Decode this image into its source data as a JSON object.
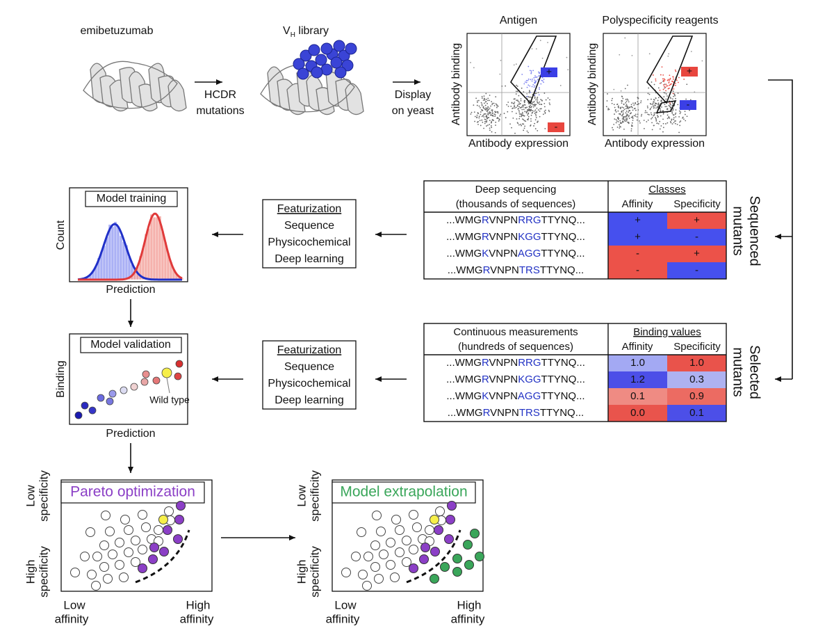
{
  "top": {
    "parent_label": "emibetuzumab",
    "library_label": {
      "main": "V",
      "sub": "H",
      "rest": " library"
    },
    "mutation_step": [
      "HCDR",
      "mutations"
    ],
    "display_step": [
      "Display",
      "on yeast"
    ],
    "plots": [
      {
        "title": "Antigen",
        "y_label": "Antibody binding",
        "x_label": "Antibody expression",
        "gates": [
          {
            "label": "+",
            "color": "#3b3fe6"
          },
          {
            "label": "-",
            "color": "#e8463e"
          }
        ]
      },
      {
        "title": "Polyspecificity reagents",
        "y_label": "Antibody binding",
        "x_label": "Antibody expression",
        "gates": [
          {
            "label": "+",
            "color": "#e8463e"
          },
          {
            "label": "-",
            "color": "#3b3fe6"
          }
        ]
      }
    ]
  },
  "sequenced_table": {
    "header": [
      "Deep sequencing",
      "(thousands of sequences)"
    ],
    "group_header": "Classes",
    "columns": [
      "Affinity",
      "Specificity"
    ],
    "rows": [
      {
        "sequence": [
          "...WMG",
          "R",
          "VNPN",
          "RRG",
          "TTYNQ..."
        ],
        "cells": [
          {
            "text": "+",
            "color": "#4650ee"
          },
          {
            "text": "+",
            "color": "#ec5249"
          }
        ]
      },
      {
        "sequence": [
          "...WMG",
          "R",
          "VNPN",
          "KGG",
          "TTYNQ..."
        ],
        "cells": [
          {
            "text": "+",
            "color": "#4650ee"
          },
          {
            "text": "-",
            "color": "#4650ee"
          }
        ]
      },
      {
        "sequence": [
          "...WMG",
          "K",
          "VNPN",
          "AGG",
          "TTYNQ..."
        ],
        "cells": [
          {
            "text": "-",
            "color": "#ec5249"
          },
          {
            "text": "+",
            "color": "#ec5249"
          }
        ]
      },
      {
        "sequence": [
          "...WMG",
          "R",
          "VNPN",
          "TRS",
          "TTYNQ..."
        ],
        "cells": [
          {
            "text": "-",
            "color": "#ec5249"
          },
          {
            "text": "-",
            "color": "#4650ee"
          }
        ]
      }
    ],
    "side_label": [
      "Sequenced",
      "mutants"
    ]
  },
  "selected_table": {
    "header": [
      "Continuous measurements",
      "(hundreds of sequences)"
    ],
    "group_header": "Binding values",
    "columns": [
      "Affinity",
      "Specificity"
    ],
    "rows": [
      {
        "sequence": [
          "...WMG",
          "R",
          "VNPN",
          "RRG",
          "TTYNQ..."
        ],
        "cells": [
          {
            "text": "1.0",
            "color": "#a3a9f3"
          },
          {
            "text": "1.0",
            "color": "#e9534b"
          }
        ]
      },
      {
        "sequence": [
          "...WMG",
          "R",
          "VNPN",
          "KGG",
          "TTYNQ..."
        ],
        "cells": [
          {
            "text": "1.2",
            "color": "#4c4fe8"
          },
          {
            "text": "0.3",
            "color": "#aeb2f1"
          }
        ]
      },
      {
        "sequence": [
          "...WMG",
          "K",
          "VNPN",
          "AGG",
          "TTYNQ..."
        ],
        "cells": [
          {
            "text": "0.1",
            "color": "#ef8b83"
          },
          {
            "text": "0.9",
            "color": "#ec6b62"
          }
        ]
      },
      {
        "sequence": [
          "...WMG",
          "R",
          "VNPN",
          "TRS",
          "TTYNQ..."
        ],
        "cells": [
          {
            "text": "0.0",
            "color": "#e9544c"
          },
          {
            "text": "0.1",
            "color": "#4c4fe8"
          }
        ]
      }
    ],
    "side_label": [
      "Selected",
      "mutants"
    ]
  },
  "featurization": [
    {
      "title": "Featurization",
      "items": [
        "Sequence",
        "Physicochemical",
        "Deep learning"
      ]
    },
    {
      "title": "Featurization",
      "items": [
        "Sequence",
        "Physicochemical",
        "Deep learning"
      ]
    }
  ],
  "training": {
    "title": "Model training",
    "y_label": "Count",
    "x_label": "Prediction"
  },
  "validation": {
    "title": "Model validation",
    "y_label": "Binding",
    "x_label": "Prediction",
    "annotation": "Wild type"
  },
  "pareto": {
    "title": "Pareto optimization",
    "title_color": "#8b3fc6",
    "y_low": [
      "Low",
      "specificity"
    ],
    "y_high": [
      "High",
      "specificity"
    ],
    "x_low": [
      "Low",
      "affinity"
    ],
    "x_high": [
      "High",
      "affinity"
    ]
  },
  "extrapolation": {
    "title": "Model extrapolation",
    "title_color": "#3aa65a",
    "y_low": [
      "Low",
      "specificity"
    ],
    "y_high": [
      "High",
      "specificity"
    ],
    "x_low": [
      "Low",
      "affinity"
    ],
    "x_high": [
      "High",
      "affinity"
    ]
  }
}
